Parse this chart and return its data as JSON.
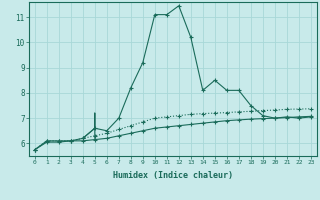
{
  "xlabel": "Humidex (Indice chaleur)",
  "background_color": "#c8eaea",
  "grid_color": "#a8d8d8",
  "line_color": "#1a6b5a",
  "xlim": [
    -0.5,
    23.5
  ],
  "ylim": [
    5.5,
    11.6
  ],
  "yticks": [
    6,
    7,
    8,
    9,
    10,
    11
  ],
  "xticks": [
    0,
    1,
    2,
    3,
    4,
    5,
    6,
    7,
    8,
    9,
    10,
    11,
    12,
    13,
    14,
    15,
    16,
    17,
    18,
    19,
    20,
    21,
    22,
    23
  ],
  "series_main_x": [
    0,
    1,
    2,
    3,
    4,
    5,
    6,
    7,
    8,
    9,
    10,
    11,
    12,
    13,
    14,
    15,
    16,
    17,
    18,
    19,
    20,
    21,
    22,
    23
  ],
  "series_main_y": [
    5.75,
    6.1,
    6.1,
    6.1,
    6.2,
    6.6,
    6.5,
    7.0,
    8.2,
    9.2,
    11.1,
    11.1,
    11.45,
    10.2,
    8.1,
    8.5,
    8.1,
    8.1,
    7.5,
    7.1,
    7.0,
    7.05,
    7.0,
    7.05
  ],
  "series_dotted_x": [
    0,
    1,
    2,
    3,
    4,
    5,
    6,
    7,
    8,
    9,
    10,
    11,
    12,
    13,
    14,
    15,
    16,
    17,
    18,
    19,
    20,
    21,
    22,
    23
  ],
  "series_dotted_y": [
    5.75,
    6.1,
    6.1,
    6.1,
    6.2,
    6.3,
    6.4,
    6.55,
    6.7,
    6.85,
    7.0,
    7.05,
    7.1,
    7.15,
    7.18,
    7.2,
    7.22,
    7.25,
    7.27,
    7.3,
    7.32,
    7.35,
    7.36,
    7.37
  ],
  "series_flat1_x": [
    0,
    1,
    2,
    3,
    4,
    5,
    6,
    7,
    8,
    9,
    10,
    11,
    12,
    13,
    14,
    15,
    16,
    17,
    18,
    19,
    20,
    21,
    22,
    23
  ],
  "series_flat1_y": [
    5.75,
    6.05,
    6.05,
    6.1,
    6.1,
    6.15,
    6.2,
    6.3,
    6.4,
    6.5,
    6.6,
    6.65,
    6.7,
    6.75,
    6.8,
    6.85,
    6.9,
    6.93,
    6.96,
    6.98,
    7.0,
    7.02,
    7.05,
    7.07
  ],
  "series_spike_x": [
    4,
    5,
    5,
    5,
    5
  ],
  "series_spike_y": [
    6.2,
    6.6,
    7.2,
    6.6,
    6.2
  ],
  "marker": "+",
  "markersize": 3,
  "linewidth": 0.8
}
